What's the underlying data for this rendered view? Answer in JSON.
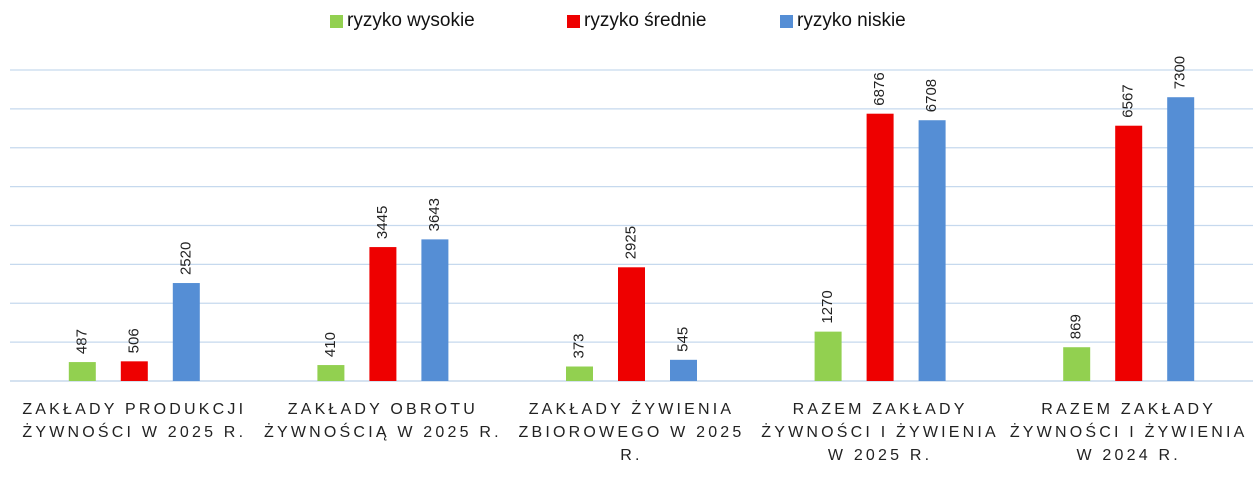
{
  "chart_data": {
    "type": "bar",
    "categories": [
      "ZAKŁADY PRODUKCJI ŻYWNOŚCI W 2025 R.",
      "ZAKŁADY OBROTU ŻYWNOŚCIĄ W 2025 R.",
      "ZAKŁADY ŻYWIENIA ZBIOROWEGO W 2025 R.",
      "RAZEM ZAKŁADY ŻYWNOŚCI I ŻYWIENIA W 2025 R.",
      "RAZEM ZAKŁADY ŻYWNOŚCI I ŻYWIENIA W 2024 R."
    ],
    "series": [
      {
        "name": "ryzyko wysokie",
        "color": "#92d050",
        "values": [
          487,
          410,
          373,
          1270,
          869
        ]
      },
      {
        "name": "ryzyko średnie",
        "color": "#ee0000",
        "values": [
          506,
          3445,
          2925,
          6876,
          6567
        ]
      },
      {
        "name": "ryzyko niskie",
        "color": "#558ed5",
        "values": [
          2520,
          3643,
          545,
          6708,
          7300
        ]
      }
    ],
    "ylim": [
      0,
      8000
    ],
    "yticks": [
      0,
      1000,
      2000,
      3000,
      4000,
      5000,
      6000,
      7000,
      8000
    ],
    "grid": true,
    "legend": "top"
  }
}
